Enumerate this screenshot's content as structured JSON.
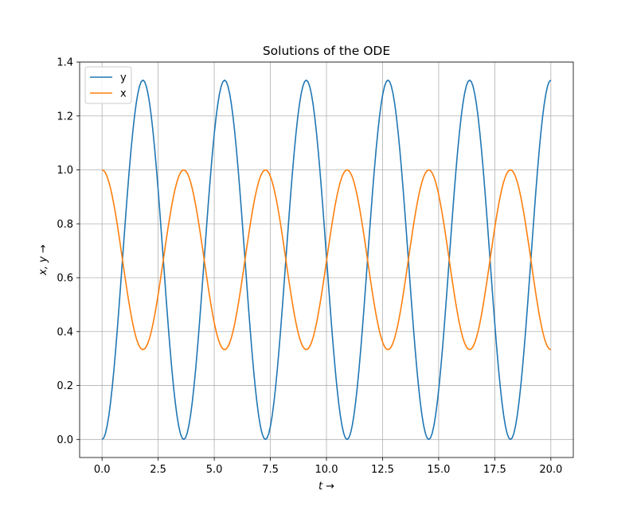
{
  "chart_data": {
    "type": "line",
    "title": "Solutions of the ODE",
    "xlabel": "t →",
    "ylabel": "x, y →",
    "xlim": [
      -1.0,
      21.0
    ],
    "ylim": [
      -0.067,
      1.4
    ],
    "xticks": [
      0.0,
      2.5,
      5.0,
      7.5,
      10.0,
      12.5,
      15.0,
      17.5,
      20.0
    ],
    "xtick_labels": [
      "0.0",
      "2.5",
      "5.0",
      "7.5",
      "10.0",
      "12.5",
      "15.0",
      "17.5",
      "20.0"
    ],
    "yticks": [
      0.0,
      0.2,
      0.4,
      0.6,
      0.8,
      1.0,
      1.2,
      1.4
    ],
    "ytick_labels": [
      "0.0",
      "0.2",
      "0.4",
      "0.6",
      "0.8",
      "1.0",
      "1.2",
      "1.4"
    ],
    "grid": true,
    "legend_position": "top-left",
    "series": [
      {
        "name": "y",
        "color": "#1f77b4",
        "x": [
          0.0,
          0.91,
          1.82,
          2.73,
          3.64,
          4.55,
          5.46,
          6.37,
          7.28,
          8.19,
          9.1,
          10.01,
          10.92,
          11.83,
          12.74,
          13.65,
          14.56,
          15.47,
          16.38,
          17.29,
          18.2,
          19.11,
          20.0
        ],
        "y": [
          0.0,
          0.667,
          1.333,
          0.667,
          0.0,
          0.667,
          1.333,
          0.667,
          0.0,
          0.667,
          1.333,
          0.667,
          0.0,
          0.667,
          1.333,
          0.667,
          0.0,
          0.667,
          1.333,
          0.667,
          0.0,
          0.667,
          1.333
        ]
      },
      {
        "name": "x",
        "color": "#ff7f0e",
        "x": [
          0.0,
          0.91,
          1.82,
          2.73,
          3.64,
          4.55,
          5.46,
          6.37,
          7.28,
          8.19,
          9.1,
          10.01,
          10.92,
          11.83,
          12.74,
          13.65,
          14.56,
          15.47,
          16.38,
          17.29,
          18.2,
          19.11,
          20.0
        ],
        "y": [
          1.0,
          0.667,
          0.333,
          0.667,
          1.0,
          0.667,
          0.333,
          0.667,
          1.0,
          0.667,
          0.333,
          0.667,
          1.0,
          0.667,
          0.333,
          0.667,
          1.0,
          0.667,
          0.333,
          0.667,
          1.0,
          0.667,
          0.333
        ]
      }
    ]
  }
}
